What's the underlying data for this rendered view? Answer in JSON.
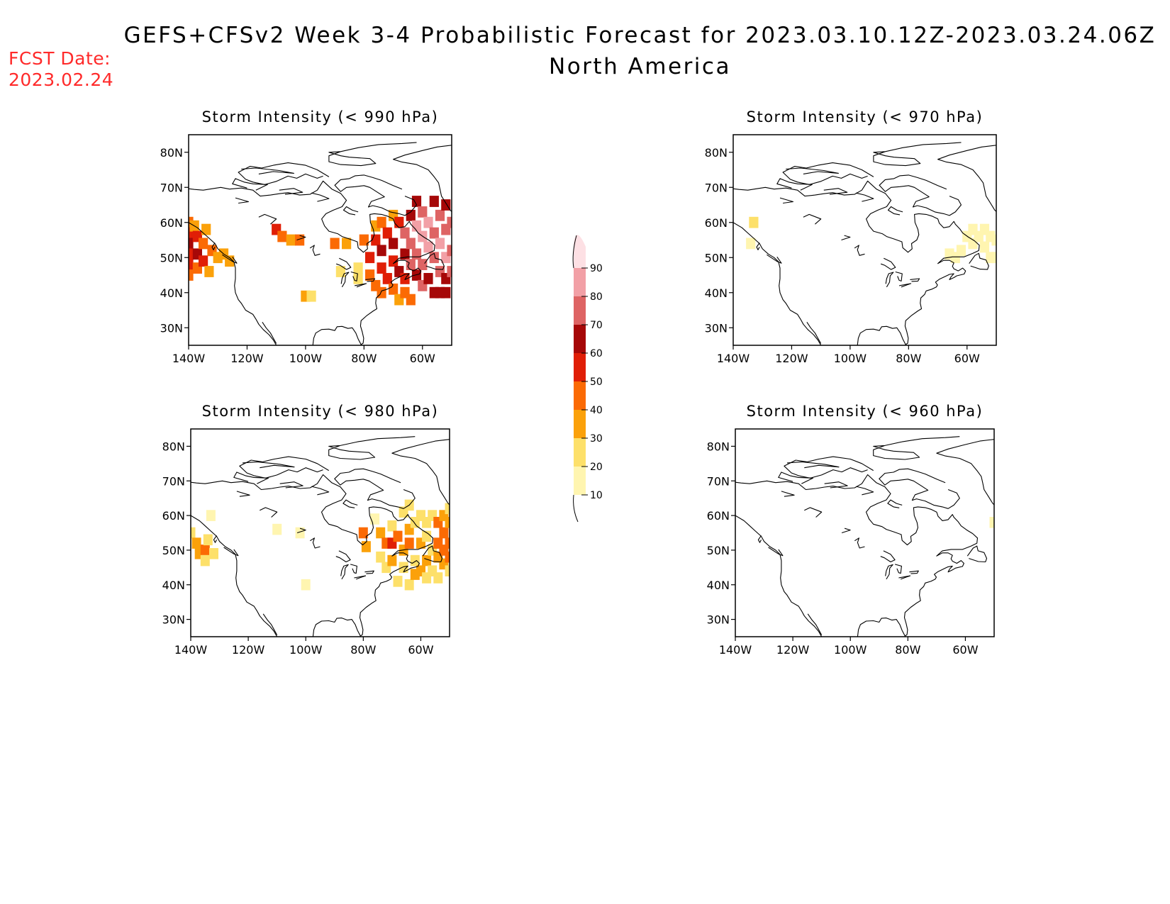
{
  "header": {
    "title": "GEFS+CFSv2 Week 3-4 Probabilistic Forecast for 2023.03.10.12Z-2023.03.24.06Z",
    "subtitle": "North America",
    "fcst_date_label": "FCST Date:",
    "fcst_date_value": "2023.02.24"
  },
  "colors": {
    "levels": [
      {
        "min": 10,
        "color": "#fff5b0"
      },
      {
        "min": 20,
        "color": "#fde06a"
      },
      {
        "min": 30,
        "color": "#fba10a"
      },
      {
        "min": 40,
        "color": "#fb6a04"
      },
      {
        "min": 50,
        "color": "#e01e06"
      },
      {
        "min": 60,
        "color": "#a60808"
      },
      {
        "min": 70,
        "color": "#de6464"
      },
      {
        "min": 80,
        "color": "#f2a0a6"
      },
      {
        "min": 90,
        "color": "#fde0e4"
      }
    ]
  },
  "colorbar": {
    "ticks": [
      "10",
      "20",
      "30",
      "40",
      "50",
      "60",
      "70",
      "80",
      "90"
    ]
  },
  "axes": {
    "lat_labels": [
      "80N",
      "70N",
      "60N",
      "50N",
      "40N",
      "30N"
    ],
    "lon_labels": [
      "140W",
      "120W",
      "100W",
      "80W",
      "60W"
    ],
    "lat_values": [
      80,
      70,
      60,
      50,
      40,
      30
    ],
    "lon_values": [
      -140,
      -120,
      -100,
      -80,
      -60
    ]
  },
  "panels": [
    {
      "title": "Storm Intensity (< 990 hPa)",
      "cells": [
        [
          -140,
          60,
          45
        ],
        [
          -140,
          57,
          55
        ],
        [
          -140,
          54,
          60
        ],
        [
          -140,
          51,
          55
        ],
        [
          -140,
          48,
          50
        ],
        [
          -140,
          45,
          40
        ],
        [
          -138,
          59,
          30
        ],
        [
          -137,
          56,
          50
        ],
        [
          -137,
          51,
          60
        ],
        [
          -137,
          47,
          45
        ],
        [
          -135,
          54,
          45
        ],
        [
          -135,
          49,
          55
        ],
        [
          -134,
          58,
          30
        ],
        [
          -133,
          46,
          35
        ],
        [
          -132,
          52,
          40
        ],
        [
          -130,
          50,
          30
        ],
        [
          -128,
          51,
          35
        ],
        [
          -126,
          49,
          30
        ],
        [
          -110,
          58,
          50
        ],
        [
          -108,
          56,
          40
        ],
        [
          -105,
          55,
          30
        ],
        [
          -102,
          55,
          45
        ],
        [
          -100,
          39,
          30
        ],
        [
          -98,
          39,
          20
        ],
        [
          -90,
          54,
          40
        ],
        [
          -86,
          54,
          30
        ],
        [
          -88,
          46,
          20
        ],
        [
          -82,
          47,
          20
        ],
        [
          -82,
          44,
          20
        ],
        [
          -80,
          55,
          40
        ],
        [
          -78,
          50,
          50
        ],
        [
          -78,
          45,
          45
        ],
        [
          -76,
          59,
          30
        ],
        [
          -76,
          55,
          55
        ],
        [
          -76,
          42,
          40
        ],
        [
          -74,
          60,
          40
        ],
        [
          -74,
          52,
          60
        ],
        [
          -74,
          47,
          50
        ],
        [
          -74,
          40,
          45
        ],
        [
          -72,
          57,
          50
        ],
        [
          -72,
          44,
          55
        ],
        [
          -70,
          62,
          35
        ],
        [
          -70,
          54,
          60
        ],
        [
          -70,
          49,
          55
        ],
        [
          -70,
          41,
          40
        ],
        [
          -68,
          60,
          55
        ],
        [
          -68,
          46,
          60
        ],
        [
          -68,
          38,
          35
        ],
        [
          -66,
          57,
          70
        ],
        [
          -66,
          51,
          60
        ],
        [
          -66,
          44,
          55
        ],
        [
          -66,
          40,
          40
        ],
        [
          -64,
          62,
          60
        ],
        [
          -64,
          54,
          75
        ],
        [
          -64,
          48,
          70
        ],
        [
          -64,
          38,
          40
        ],
        [
          -62,
          66,
          60
        ],
        [
          -62,
          59,
          80
        ],
        [
          -62,
          51,
          75
        ],
        [
          -62,
          45,
          60
        ],
        [
          -60,
          63,
          70
        ],
        [
          -60,
          56,
          80
        ],
        [
          -60,
          48,
          70
        ],
        [
          -60,
          42,
          75
        ],
        [
          -58,
          60,
          80
        ],
        [
          -58,
          53,
          85
        ],
        [
          -58,
          44,
          60
        ],
        [
          -56,
          66,
          60
        ],
        [
          -56,
          57,
          75
        ],
        [
          -56,
          50,
          70
        ],
        [
          -56,
          40,
          60
        ],
        [
          -54,
          62,
          70
        ],
        [
          -54,
          54,
          80
        ],
        [
          -54,
          46,
          75
        ],
        [
          -54,
          40,
          65
        ],
        [
          -52,
          65,
          60
        ],
        [
          -52,
          58,
          75
        ],
        [
          -52,
          50,
          80
        ],
        [
          -52,
          44,
          60
        ],
        [
          -52,
          40,
          60
        ],
        [
          -50,
          60,
          70
        ],
        [
          -50,
          52,
          75
        ],
        [
          -50,
          46,
          70
        ]
      ]
    },
    {
      "title": "Storm Intensity (< 970 hPa)",
      "cells": [
        [
          -133,
          60,
          20
        ],
        [
          -134,
          54,
          15
        ],
        [
          -62,
          52,
          15
        ],
        [
          -60,
          56,
          15
        ],
        [
          -58,
          54,
          10
        ],
        [
          -58,
          58,
          15
        ],
        [
          -56,
          56,
          15
        ],
        [
          -54,
          58,
          15
        ],
        [
          -54,
          53,
          15
        ],
        [
          -52,
          56,
          15
        ],
        [
          -52,
          50,
          15
        ],
        [
          -50,
          55,
          15
        ],
        [
          -50,
          50,
          15
        ],
        [
          -64,
          50,
          10
        ],
        [
          -66,
          51,
          10
        ]
      ]
    },
    {
      "title": "Storm Intensity (< 980 hPa)",
      "cells": [
        [
          -140,
          55,
          20
        ],
        [
          -138,
          52,
          30
        ],
        [
          -137,
          49,
          35
        ],
        [
          -135,
          50,
          40
        ],
        [
          -135,
          47,
          25
        ],
        [
          -134,
          53,
          20
        ],
        [
          -132,
          49,
          20
        ],
        [
          -133,
          60,
          15
        ],
        [
          -110,
          56,
          15
        ],
        [
          -102,
          55,
          15
        ],
        [
          -100,
          40,
          10
        ],
        [
          -80,
          55,
          40
        ],
        [
          -79,
          51,
          30
        ],
        [
          -76,
          59,
          15
        ],
        [
          -74,
          55,
          30
        ],
        [
          -74,
          48,
          20
        ],
        [
          -72,
          52,
          40
        ],
        [
          -72,
          45,
          20
        ],
        [
          -70,
          57,
          25
        ],
        [
          -70,
          52,
          50
        ],
        [
          -70,
          47,
          30
        ],
        [
          -68,
          54,
          40
        ],
        [
          -68,
          41,
          20
        ],
        [
          -66,
          50,
          35
        ],
        [
          -66,
          45,
          25
        ],
        [
          -66,
          61,
          20
        ],
        [
          -64,
          56,
          30
        ],
        [
          -64,
          52,
          40
        ],
        [
          -64,
          40,
          20
        ],
        [
          -62,
          58,
          25
        ],
        [
          -62,
          47,
          25
        ],
        [
          -62,
          43,
          30
        ],
        [
          -60,
          60,
          20
        ],
        [
          -60,
          52,
          30
        ],
        [
          -60,
          44,
          35
        ],
        [
          -58,
          58,
          25
        ],
        [
          -58,
          54,
          20
        ],
        [
          -58,
          47,
          30
        ],
        [
          -58,
          42,
          25
        ],
        [
          -56,
          60,
          20
        ],
        [
          -56,
          50,
          25
        ],
        [
          -56,
          44,
          20
        ],
        [
          -54,
          58,
          40
        ],
        [
          -54,
          52,
          40
        ],
        [
          -54,
          48,
          35
        ],
        [
          -54,
          42,
          25
        ],
        [
          -52,
          60,
          30
        ],
        [
          -52,
          55,
          40
        ],
        [
          -52,
          50,
          40
        ],
        [
          -52,
          46,
          30
        ],
        [
          -50,
          58,
          30
        ],
        [
          -50,
          52,
          40
        ],
        [
          -50,
          48,
          40
        ],
        [
          -50,
          44,
          25
        ],
        [
          -50,
          62,
          20
        ],
        [
          -64,
          63,
          20
        ]
      ]
    },
    {
      "title": "Storm Intensity (< 960 hPa)",
      "cells": [
        [
          -50,
          58,
          10
        ]
      ]
    }
  ]
}
